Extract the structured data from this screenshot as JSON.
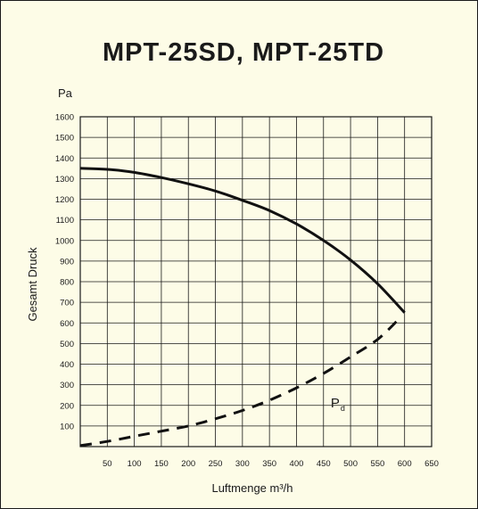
{
  "chart_data": {
    "type": "line",
    "title": "MPT-25SD,  MPT-25TD",
    "xlabel": "Luftmenge  m³/h",
    "ylabel": "Gesamt Druck",
    "y_unit": "Pa",
    "xlim": [
      0,
      650
    ],
    "ylim": [
      0,
      1600
    ],
    "x_ticks": [
      50,
      100,
      150,
      200,
      250,
      300,
      350,
      400,
      450,
      500,
      550,
      600,
      650
    ],
    "y_ticks": [
      100,
      200,
      300,
      400,
      500,
      600,
      700,
      800,
      900,
      1000,
      1100,
      1200,
      1300,
      1400,
      1500,
      1600
    ],
    "grid": true,
    "series": [
      {
        "style": "solid",
        "x": [
          0,
          50,
          100,
          150,
          200,
          250,
          300,
          350,
          400,
          450,
          500,
          550,
          600
        ],
        "y": [
          1350,
          1345,
          1330,
          1305,
          1275,
          1240,
          1195,
          1145,
          1080,
          1000,
          905,
          790,
          650
        ]
      },
      {
        "style": "dashed",
        "x": [
          0,
          50,
          100,
          150,
          200,
          250,
          300,
          350,
          400,
          450,
          500,
          550,
          590
        ],
        "y": [
          5,
          25,
          50,
          75,
          100,
          135,
          175,
          225,
          285,
          355,
          435,
          520,
          620
        ]
      }
    ],
    "annotations": [
      {
        "text": "P",
        "sub": "d",
        "x": 470,
        "y": 260
      }
    ]
  }
}
